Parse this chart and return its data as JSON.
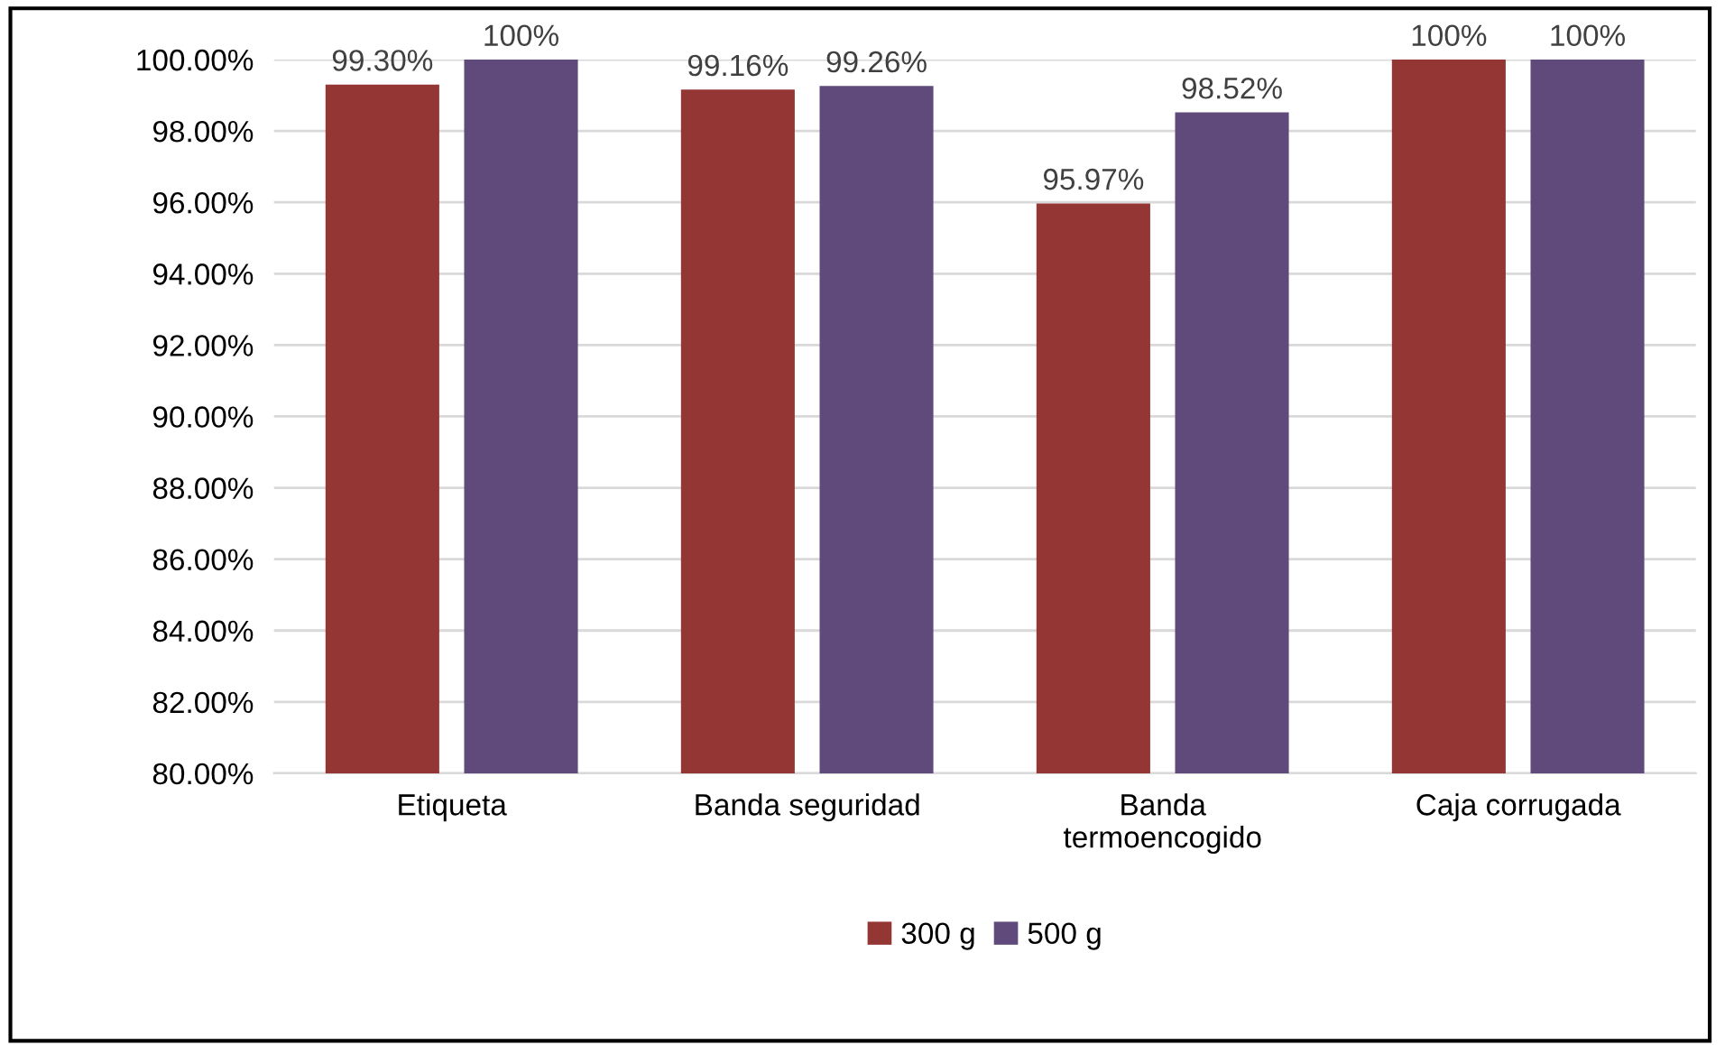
{
  "chart_data": {
    "type": "bar",
    "categories": [
      "Etiqueta",
      "Banda seguridad",
      "Banda\ntermoencogido",
      "Caja corrugada"
    ],
    "series": [
      {
        "name": "300 g",
        "color": "#943634",
        "values": [
          99.3,
          99.16,
          95.97,
          100
        ],
        "value_labels": [
          "99.30%",
          "99.16%",
          "95.97%",
          "100%"
        ]
      },
      {
        "name": "500 g",
        "color": "#604a7b",
        "values": [
          100,
          99.26,
          98.52,
          100
        ],
        "value_labels": [
          "100%",
          "99.26%",
          "98.52%",
          "100%"
        ]
      }
    ],
    "ylim": [
      80,
      100
    ],
    "yticks": [
      {
        "value": 80,
        "label": "80.00%"
      },
      {
        "value": 82,
        "label": "82.00%"
      },
      {
        "value": 84,
        "label": "84.00%"
      },
      {
        "value": 86,
        "label": "86.00%"
      },
      {
        "value": 88,
        "label": "88.00%"
      },
      {
        "value": 90,
        "label": "90.00%"
      },
      {
        "value": 92,
        "label": "92.00%"
      },
      {
        "value": 94,
        "label": "94.00%"
      },
      {
        "value": 96,
        "label": "96.00%"
      },
      {
        "value": 98,
        "label": "98.00%"
      },
      {
        "value": 100,
        "label": "100.00%"
      }
    ],
    "grid": "y",
    "legend": "bottom"
  }
}
